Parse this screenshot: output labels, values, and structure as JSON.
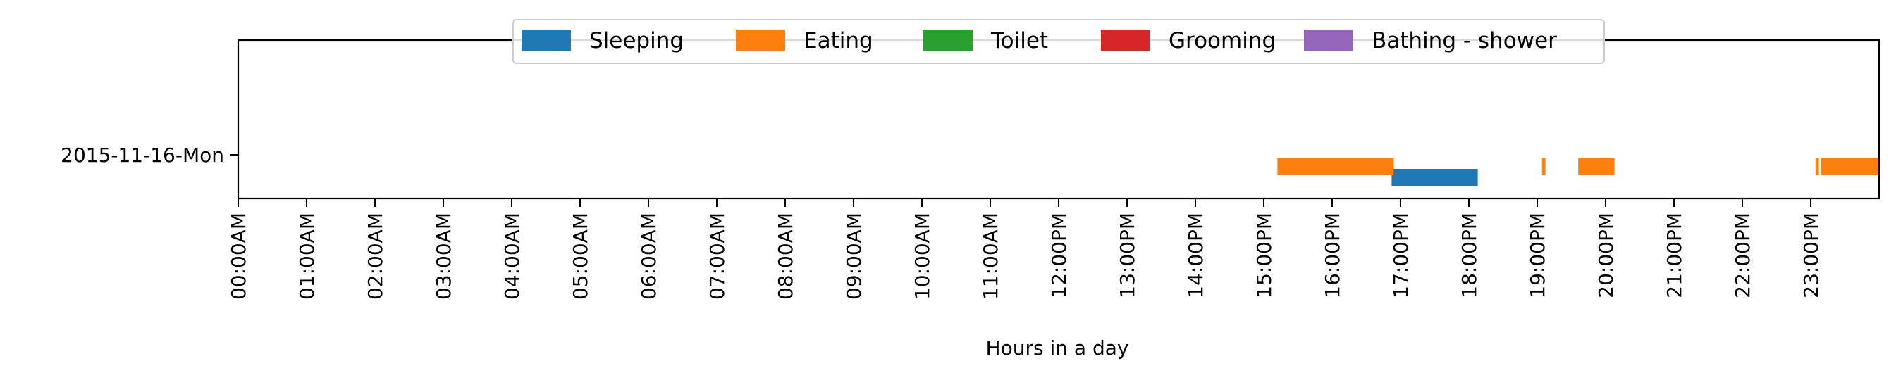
{
  "chart_data": {
    "type": "bar",
    "orientation": "horizontal",
    "xlabel": "Hours in a day",
    "ylabel": "",
    "xlim": [
      0,
      24
    ],
    "x_ticks": [
      "00:00AM",
      "01:00AM",
      "02:00AM",
      "03:00AM",
      "04:00AM",
      "05:00AM",
      "06:00AM",
      "07:00AM",
      "08:00AM",
      "09:00AM",
      "10:00AM",
      "11:00AM",
      "12:00PM",
      "13:00PM",
      "14:00PM",
      "15:00PM",
      "16:00PM",
      "17:00PM",
      "18:00PM",
      "19:00PM",
      "20:00PM",
      "21:00PM",
      "22:00PM",
      "23:00PM"
    ],
    "categories": [
      "2015-11-16-Mon"
    ],
    "legend_position": "top-center",
    "series": [
      {
        "name": "Sleeping",
        "color": "#1f77b4",
        "lane": "lower",
        "intervals": [
          [
            16.87,
            18.13
          ]
        ]
      },
      {
        "name": "Eating",
        "color": "#ff7f0e",
        "lane": "upper",
        "intervals": [
          [
            15.2,
            16.9
          ],
          [
            19.07,
            19.12
          ],
          [
            19.6,
            20.13
          ],
          [
            23.07,
            23.12
          ],
          [
            23.15,
            24.0
          ]
        ]
      },
      {
        "name": "Toilet",
        "color": "#2ca02c",
        "lane": "upper",
        "intervals": []
      },
      {
        "name": "Grooming",
        "color": "#d62728",
        "lane": "upper",
        "intervals": []
      },
      {
        "name": "Bathing - shower",
        "color": "#9467bd",
        "lane": "upper",
        "intervals": []
      }
    ]
  }
}
